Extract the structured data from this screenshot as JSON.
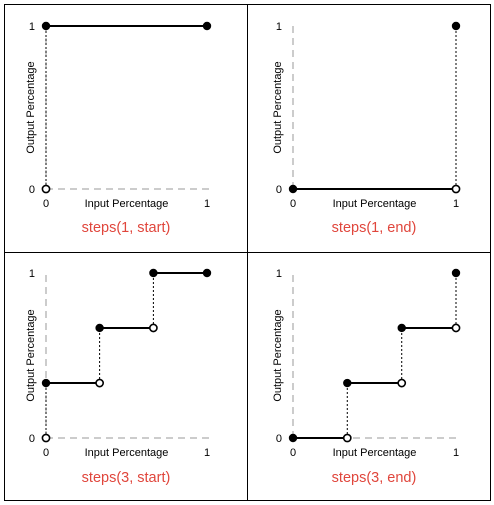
{
  "x_axis_label": "Input Percentage",
  "y_axis_label": "Output Percentage",
  "tick_labels": {
    "x_min": "0",
    "x_max": "1",
    "y_min": "0",
    "y_max": "1"
  },
  "colors": {
    "caption": "#e0463c",
    "grid_border": "#000000",
    "axis_dash": "#9a9a9a",
    "line": "#000000"
  },
  "chart_data": [
    {
      "type": "line",
      "title": "steps(1, start)",
      "xlabel": "Input Percentage",
      "ylabel": "Output Percentage",
      "xlim": [
        0,
        1
      ],
      "ylim": [
        0,
        1
      ],
      "segments": [
        {
          "x": [
            0,
            1
          ],
          "y": 1
        }
      ],
      "drops": [
        {
          "x": 0,
          "y_from": 0,
          "y_to": 1
        }
      ],
      "closed_points": [
        [
          0,
          1
        ],
        [
          1,
          1
        ]
      ],
      "open_points": [
        [
          0,
          0
        ]
      ]
    },
    {
      "type": "line",
      "title": "steps(1, end)",
      "xlabel": "Input Percentage",
      "ylabel": "Output Percentage",
      "xlim": [
        0,
        1
      ],
      "ylim": [
        0,
        1
      ],
      "segments": [
        {
          "x": [
            0,
            1
          ],
          "y": 0
        }
      ],
      "drops": [
        {
          "x": 1,
          "y_from": 0,
          "y_to": 1
        }
      ],
      "closed_points": [
        [
          0,
          0
        ],
        [
          1,
          1
        ]
      ],
      "open_points": [
        [
          1,
          0
        ]
      ]
    },
    {
      "type": "line",
      "title": "steps(3, start)",
      "xlabel": "Input Percentage",
      "ylabel": "Output Percentage",
      "xlim": [
        0,
        1
      ],
      "ylim": [
        0,
        1
      ],
      "segments": [
        {
          "x": [
            0,
            0.333
          ],
          "y": 0.333
        },
        {
          "x": [
            0.333,
            0.667
          ],
          "y": 0.667
        },
        {
          "x": [
            0.667,
            1
          ],
          "y": 1
        }
      ],
      "drops": [
        {
          "x": 0,
          "y_from": 0,
          "y_to": 0.333
        },
        {
          "x": 0.333,
          "y_from": 0.333,
          "y_to": 0.667
        },
        {
          "x": 0.667,
          "y_from": 0.667,
          "y_to": 1
        }
      ],
      "closed_points": [
        [
          0,
          0.333
        ],
        [
          0.333,
          0.667
        ],
        [
          0.667,
          1
        ],
        [
          1,
          1
        ]
      ],
      "open_points": [
        [
          0,
          0
        ],
        [
          0.333,
          0.333
        ],
        [
          0.667,
          0.667
        ]
      ]
    },
    {
      "type": "line",
      "title": "steps(3, end)",
      "xlabel": "Input Percentage",
      "ylabel": "Output Percentage",
      "xlim": [
        0,
        1
      ],
      "ylim": [
        0,
        1
      ],
      "segments": [
        {
          "x": [
            0,
            0.333
          ],
          "y": 0
        },
        {
          "x": [
            0.333,
            0.667
          ],
          "y": 0.333
        },
        {
          "x": [
            0.667,
            1
          ],
          "y": 0.667
        }
      ],
      "drops": [
        {
          "x": 0.333,
          "y_from": 0,
          "y_to": 0.333
        },
        {
          "x": 0.667,
          "y_from": 0.333,
          "y_to": 0.667
        },
        {
          "x": 1,
          "y_from": 0.667,
          "y_to": 1
        }
      ],
      "closed_points": [
        [
          0,
          0
        ],
        [
          0.333,
          0.333
        ],
        [
          0.667,
          0.667
        ],
        [
          1,
          1
        ]
      ],
      "open_points": [
        [
          0.333,
          0
        ],
        [
          0.667,
          0.333
        ],
        [
          1,
          0.667
        ]
      ]
    }
  ]
}
